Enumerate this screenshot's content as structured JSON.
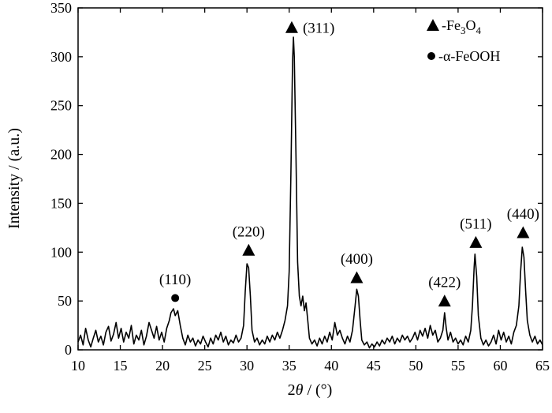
{
  "chart_data": {
    "type": "line",
    "xlabel_prefix": "2",
    "xlabel_symbol": "θ",
    "xlabel_suffix": " / (°)",
    "ylabel": "Intensity / (a.u.)",
    "xlim": [
      10,
      65
    ],
    "ylim": [
      0,
      350
    ],
    "x_ticks": [
      10,
      15,
      20,
      25,
      30,
      35,
      40,
      45,
      50,
      55,
      60,
      65
    ],
    "y_ticks": [
      0,
      50,
      100,
      150,
      200,
      250,
      300,
      350
    ],
    "grid": false,
    "legend_position": "top-right",
    "legend": [
      {
        "marker": "triangle",
        "text": "-Fe",
        "sub1": "3",
        "mid": "O",
        "sub2": "4"
      },
      {
        "marker": "circle",
        "text": "-α-FeOOH"
      }
    ],
    "series": [
      {
        "color": "#000000",
        "points": [
          [
            10.0,
            8
          ],
          [
            10.3,
            15
          ],
          [
            10.6,
            5
          ],
          [
            10.9,
            22
          ],
          [
            11.2,
            10
          ],
          [
            11.5,
            3
          ],
          [
            11.8,
            12
          ],
          [
            12.1,
            20
          ],
          [
            12.4,
            8
          ],
          [
            12.7,
            14
          ],
          [
            13.0,
            5
          ],
          [
            13.3,
            18
          ],
          [
            13.6,
            24
          ],
          [
            13.9,
            9
          ],
          [
            14.2,
            16
          ],
          [
            14.5,
            28
          ],
          [
            14.8,
            12
          ],
          [
            15.1,
            22
          ],
          [
            15.4,
            8
          ],
          [
            15.7,
            18
          ],
          [
            16.0,
            12
          ],
          [
            16.3,
            25
          ],
          [
            16.6,
            6
          ],
          [
            16.9,
            15
          ],
          [
            17.2,
            10
          ],
          [
            17.5,
            20
          ],
          [
            17.8,
            5
          ],
          [
            18.1,
            14
          ],
          [
            18.4,
            28
          ],
          [
            18.7,
            20
          ],
          [
            19.0,
            12
          ],
          [
            19.3,
            24
          ],
          [
            19.6,
            10
          ],
          [
            19.9,
            18
          ],
          [
            20.2,
            8
          ],
          [
            20.5,
            22
          ],
          [
            20.8,
            30
          ],
          [
            21.0,
            38
          ],
          [
            21.3,
            42
          ],
          [
            21.5,
            35
          ],
          [
            21.8,
            40
          ],
          [
            22.1,
            25
          ],
          [
            22.4,
            12
          ],
          [
            22.7,
            5
          ],
          [
            23.0,
            15
          ],
          [
            23.3,
            8
          ],
          [
            23.6,
            12
          ],
          [
            23.9,
            4
          ],
          [
            24.2,
            10
          ],
          [
            24.5,
            6
          ],
          [
            24.8,
            14
          ],
          [
            25.1,
            8
          ],
          [
            25.4,
            3
          ],
          [
            25.7,
            12
          ],
          [
            26.0,
            6
          ],
          [
            26.3,
            15
          ],
          [
            26.6,
            10
          ],
          [
            26.9,
            18
          ],
          [
            27.2,
            8
          ],
          [
            27.5,
            14
          ],
          [
            27.8,
            5
          ],
          [
            28.1,
            10
          ],
          [
            28.4,
            7
          ],
          [
            28.7,
            15
          ],
          [
            29.0,
            8
          ],
          [
            29.3,
            12
          ],
          [
            29.6,
            25
          ],
          [
            29.8,
            60
          ],
          [
            30.0,
            88
          ],
          [
            30.2,
            84
          ],
          [
            30.4,
            55
          ],
          [
            30.6,
            20
          ],
          [
            30.9,
            8
          ],
          [
            31.2,
            12
          ],
          [
            31.5,
            5
          ],
          [
            31.8,
            10
          ],
          [
            32.1,
            6
          ],
          [
            32.4,
            14
          ],
          [
            32.7,
            8
          ],
          [
            33.0,
            15
          ],
          [
            33.3,
            10
          ],
          [
            33.6,
            18
          ],
          [
            33.9,
            12
          ],
          [
            34.2,
            20
          ],
          [
            34.5,
            30
          ],
          [
            34.8,
            45
          ],
          [
            35.0,
            80
          ],
          [
            35.2,
            180
          ],
          [
            35.4,
            295
          ],
          [
            35.5,
            320
          ],
          [
            35.6,
            300
          ],
          [
            35.8,
            200
          ],
          [
            36.0,
            90
          ],
          [
            36.2,
            55
          ],
          [
            36.4,
            45
          ],
          [
            36.6,
            55
          ],
          [
            36.8,
            40
          ],
          [
            37.0,
            48
          ],
          [
            37.2,
            30
          ],
          [
            37.4,
            12
          ],
          [
            37.7,
            6
          ],
          [
            38.0,
            10
          ],
          [
            38.3,
            4
          ],
          [
            38.6,
            12
          ],
          [
            38.9,
            6
          ],
          [
            39.2,
            14
          ],
          [
            39.5,
            8
          ],
          [
            39.8,
            18
          ],
          [
            40.1,
            10
          ],
          [
            40.4,
            28
          ],
          [
            40.7,
            15
          ],
          [
            41.0,
            20
          ],
          [
            41.3,
            12
          ],
          [
            41.6,
            6
          ],
          [
            41.9,
            14
          ],
          [
            42.2,
            8
          ],
          [
            42.5,
            20
          ],
          [
            42.8,
            45
          ],
          [
            43.0,
            62
          ],
          [
            43.2,
            55
          ],
          [
            43.4,
            30
          ],
          [
            43.6,
            10
          ],
          [
            43.9,
            5
          ],
          [
            44.2,
            8
          ],
          [
            44.5,
            2
          ],
          [
            44.8,
            6
          ],
          [
            45.1,
            3
          ],
          [
            45.4,
            8
          ],
          [
            45.7,
            4
          ],
          [
            46.0,
            10
          ],
          [
            46.3,
            6
          ],
          [
            46.6,
            12
          ],
          [
            46.9,
            8
          ],
          [
            47.2,
            14
          ],
          [
            47.5,
            6
          ],
          [
            47.8,
            12
          ],
          [
            48.1,
            8
          ],
          [
            48.4,
            15
          ],
          [
            48.7,
            10
          ],
          [
            49.0,
            14
          ],
          [
            49.3,
            8
          ],
          [
            49.6,
            12
          ],
          [
            49.9,
            18
          ],
          [
            50.2,
            10
          ],
          [
            50.5,
            20
          ],
          [
            50.8,
            14
          ],
          [
            51.1,
            22
          ],
          [
            51.4,
            12
          ],
          [
            51.7,
            25
          ],
          [
            52.0,
            15
          ],
          [
            52.3,
            20
          ],
          [
            52.6,
            8
          ],
          [
            52.9,
            12
          ],
          [
            53.2,
            20
          ],
          [
            53.4,
            38
          ],
          [
            53.6,
            22
          ],
          [
            53.8,
            10
          ],
          [
            54.1,
            18
          ],
          [
            54.4,
            8
          ],
          [
            54.7,
            12
          ],
          [
            55.0,
            6
          ],
          [
            55.3,
            10
          ],
          [
            55.6,
            5
          ],
          [
            55.9,
            14
          ],
          [
            56.2,
            8
          ],
          [
            56.5,
            20
          ],
          [
            56.7,
            45
          ],
          [
            56.9,
            85
          ],
          [
            57.0,
            98
          ],
          [
            57.2,
            75
          ],
          [
            57.4,
            35
          ],
          [
            57.7,
            12
          ],
          [
            58.0,
            5
          ],
          [
            58.3,
            10
          ],
          [
            58.6,
            4
          ],
          [
            58.9,
            8
          ],
          [
            59.2,
            15
          ],
          [
            59.5,
            6
          ],
          [
            59.8,
            20
          ],
          [
            60.1,
            10
          ],
          [
            60.4,
            18
          ],
          [
            60.7,
            8
          ],
          [
            61.0,
            14
          ],
          [
            61.3,
            6
          ],
          [
            61.6,
            18
          ],
          [
            61.9,
            25
          ],
          [
            62.2,
            45
          ],
          [
            62.4,
            80
          ],
          [
            62.6,
            105
          ],
          [
            62.8,
            95
          ],
          [
            63.0,
            60
          ],
          [
            63.2,
            30
          ],
          [
            63.5,
            15
          ],
          [
            63.8,
            8
          ],
          [
            64.1,
            14
          ],
          [
            64.4,
            6
          ],
          [
            64.7,
            10
          ],
          [
            65.0,
            5
          ]
        ]
      }
    ],
    "annotations": [
      {
        "label": "(110)",
        "marker": "circle",
        "x": 21.5,
        "marker_y": 53,
        "label_y": 72
      },
      {
        "label": "(220)",
        "marker": "triangle",
        "x": 30.2,
        "marker_y": 102,
        "label_y": 121
      },
      {
        "label": "(311)",
        "marker": "triangle",
        "x": 35.3,
        "marker_y": 330,
        "label_y": 330
      },
      {
        "label": "(400)",
        "marker": "triangle",
        "x": 43.0,
        "marker_y": 74,
        "label_y": 93
      },
      {
        "label": "(422)",
        "marker": "triangle",
        "x": 53.4,
        "marker_y": 50,
        "label_y": 69
      },
      {
        "label": "(511)",
        "marker": "triangle",
        "x": 57.1,
        "marker_y": 110,
        "label_y": 129
      },
      {
        "label": "(440)",
        "marker": "triangle",
        "x": 62.7,
        "marker_y": 120,
        "label_y": 139
      }
    ]
  }
}
